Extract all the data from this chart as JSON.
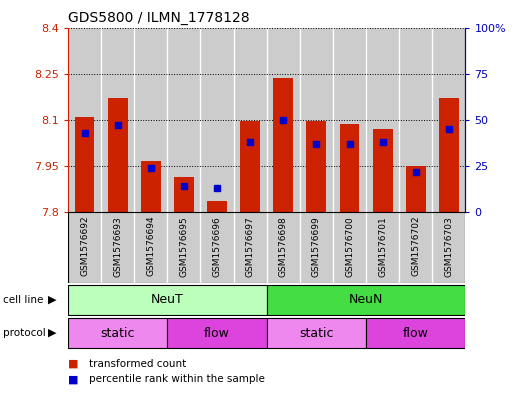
{
  "title": "GDS5800 / ILMN_1778128",
  "samples": [
    "GSM1576692",
    "GSM1576693",
    "GSM1576694",
    "GSM1576695",
    "GSM1576696",
    "GSM1576697",
    "GSM1576698",
    "GSM1576699",
    "GSM1576700",
    "GSM1576701",
    "GSM1576702",
    "GSM1576703"
  ],
  "transformed_count": [
    8.11,
    8.17,
    7.965,
    7.915,
    7.835,
    8.095,
    8.235,
    8.095,
    8.085,
    8.07,
    7.95,
    8.17
  ],
  "percentile_rank": [
    43,
    47,
    24,
    14,
    13,
    38,
    50,
    37,
    37,
    38,
    22,
    45
  ],
  "ylim_left": [
    7.8,
    8.4
  ],
  "ylim_right": [
    0,
    100
  ],
  "yticks_left": [
    7.8,
    7.95,
    8.1,
    8.25,
    8.4
  ],
  "yticks_right": [
    0,
    25,
    50,
    75,
    100
  ],
  "ytick_labels_left": [
    "7.8",
    "7.95",
    "8.1",
    "8.25",
    "8.4"
  ],
  "ytick_labels_right": [
    "0",
    "25",
    "50",
    "75",
    "100%"
  ],
  "bar_color": "#cc2200",
  "dot_color": "#0000cc",
  "bar_baseline": 7.8,
  "grid_color": "black",
  "cell_line_groups": [
    {
      "label": "NeuT",
      "start": 0,
      "end": 6,
      "color": "#bbffbb"
    },
    {
      "label": "NeuN",
      "start": 6,
      "end": 12,
      "color": "#44dd44"
    }
  ],
  "protocol_groups": [
    {
      "label": "static",
      "start": 0,
      "end": 3,
      "color": "#ee88ee"
    },
    {
      "label": "flow",
      "start": 3,
      "end": 6,
      "color": "#dd44dd"
    },
    {
      "label": "static",
      "start": 6,
      "end": 9,
      "color": "#ee88ee"
    },
    {
      "label": "flow",
      "start": 9,
      "end": 12,
      "color": "#dd44dd"
    }
  ],
  "legend_items": [
    {
      "label": "transformed count",
      "color": "#cc2200"
    },
    {
      "label": "percentile rank within the sample",
      "color": "#0000cc"
    }
  ],
  "bar_width": 0.6,
  "bg_color": "#cccccc",
  "ylabel_left_color": "#cc2200",
  "ylabel_right_color": "#0000bb",
  "n_samples": 12
}
